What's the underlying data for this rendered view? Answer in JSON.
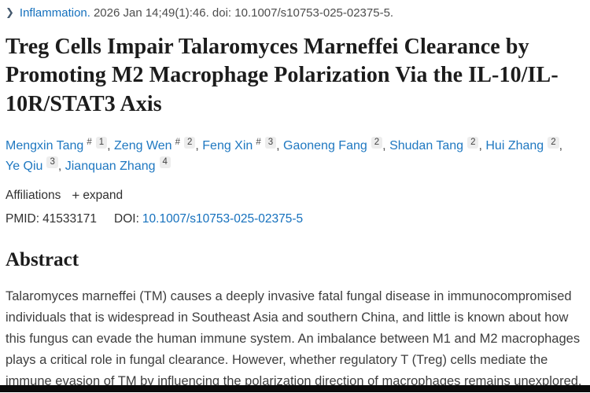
{
  "citation": {
    "chevron_icon": "❯",
    "journal": "Inflammation.",
    "rest": "2026 Jan 14;49(1):46. doi: 10.1007/s10753-025-02375-5."
  },
  "title": "Treg Cells Impair Talaromyces Marneffei Clearance by Promoting M2 Macrophage Polarization Via the IL-10/IL-10R/STAT3 Axis",
  "authors": [
    {
      "name": "Mengxin Tang",
      "equal": "#",
      "sup": "1",
      "sep": ", "
    },
    {
      "name": "Zeng Wen",
      "equal": "#",
      "sup": "2",
      "sep": ", "
    },
    {
      "name": "Feng Xin",
      "equal": "#",
      "sup": "3",
      "sep": ", "
    },
    {
      "name": "Gaoneng Fang",
      "equal": "",
      "sup": "2",
      "sep": ", "
    },
    {
      "name": "Shudan Tang",
      "equal": "",
      "sup": "2",
      "sep": ", "
    },
    {
      "name": "Hui Zhang",
      "equal": "",
      "sup": "2",
      "sep": ", "
    },
    {
      "name": "Ye Qiu",
      "equal": "",
      "sup": "3",
      "sep": ", "
    },
    {
      "name": "Jianquan Zhang",
      "equal": "",
      "sup": "4",
      "sep": ""
    }
  ],
  "affiliations": {
    "label": "Affiliations",
    "plus_icon": "+",
    "expand_label": "expand"
  },
  "identifiers": {
    "pmid_label": "PMID:",
    "pmid_value": "41533171",
    "doi_label": "DOI:",
    "doi_value": "10.1007/s10753-025-02375-5"
  },
  "abstract": {
    "heading": "Abstract",
    "text": "Talaromyces marneffei (TM) causes a deeply invasive fatal fungal disease in immunocompromised individuals that is widespread in Southeast Asia and southern China, and little is known about how this fungus can evade the human immune system. An imbalance between M1 and M2 macrophages plays a critical role in fungal clearance. However, whether regulatory T (Treg) cells mediate the immune evasion of TM by influencing the polarization direction of macrophages remains unexplored."
  },
  "colors": {
    "link_blue": "#1470bd",
    "chevron": "#44596e",
    "badge_bg": "#ededed",
    "bottom_bar": "#0b0b0b"
  }
}
